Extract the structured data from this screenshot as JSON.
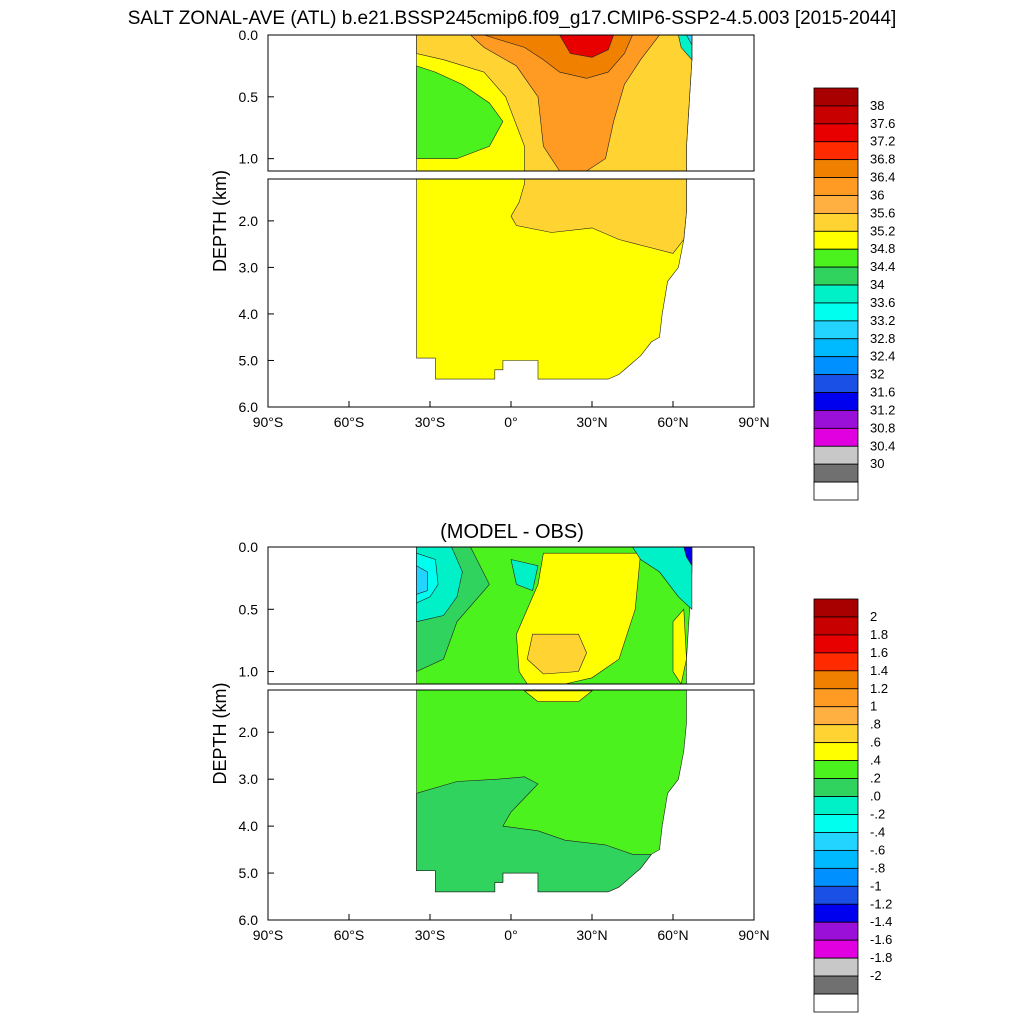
{
  "chart_data": [
    {
      "type": "heatmap",
      "title": "SALT ZONAL-AVE (ATL) b.e21.BSSP245cmip6.f09_g17.CMIP6-SSP2-4.5.003 [2015-2044]",
      "subtitle": "",
      "ylabel": "DEPTH (km)",
      "xlabel": "",
      "x_ticks": [
        "90°S",
        "60°S",
        "30°S",
        "0°",
        "30°N",
        "60°N",
        "90°N"
      ],
      "y_ticks_upper": [
        "0.0",
        "0.5",
        "1.0"
      ],
      "y_ticks_lower": [
        "2.0",
        "3.0",
        "4.0",
        "5.0",
        "6.0"
      ],
      "xlim": [
        -90,
        90
      ],
      "ylim": [
        6.0,
        0.0
      ],
      "y_break_km": 1.1,
      "legend_position": "right",
      "colorbar_labels": [
        "38",
        "37.6",
        "37.2",
        "36.8",
        "36.4",
        "36",
        "35.6",
        "35.2",
        "34.8",
        "34.4",
        "34",
        "33.6",
        "33.2",
        "32.8",
        "32.4",
        "32",
        "31.6",
        "31.2",
        "30.8",
        "30.4",
        "30"
      ],
      "colorbar_colors": [
        "#a80000",
        "#c80000",
        "#e80000",
        "#ff2a00",
        "#f08000",
        "#ff9a22",
        "#ffb040",
        "#ffd332",
        "#ffff00",
        "#4cf21e",
        "#2fd35d",
        "#00f0c8",
        "#00ffee",
        "#22d4ff",
        "#00baff",
        "#0090ff",
        "#1a50e6",
        "#0000ee",
        "#9b10d8",
        "#e000e0",
        "#c8c8c8",
        "#707070",
        "#ffffff"
      ],
      "field_colors": {
        "green": "#4cf21e",
        "yellow": "#ffff00",
        "yellow_orange": "#ffd332",
        "orange": "#ff9a22",
        "dark_orange": "#f08000",
        "red": "#e80000",
        "teal": "#00f0c8",
        "cyan": "#00ffee",
        "light_blue": "#22d4ff"
      }
    },
    {
      "type": "heatmap",
      "title": "",
      "subtitle": "(MODEL - OBS)",
      "ylabel": "DEPTH (km)",
      "xlabel": "",
      "x_ticks": [
        "90°S",
        "60°S",
        "30°S",
        "0°",
        "30°N",
        "60°N",
        "90°N"
      ],
      "y_ticks_upper": [
        "0.0",
        "0.5",
        "1.0"
      ],
      "y_ticks_lower": [
        "2.0",
        "3.0",
        "4.0",
        "5.0",
        "6.0"
      ],
      "xlim": [
        -90,
        90
      ],
      "ylim": [
        6.0,
        0.0
      ],
      "y_break_km": 1.1,
      "legend_position": "right",
      "colorbar_labels": [
        "2",
        "1.8",
        "1.6",
        "1.4",
        "1.2",
        "1",
        ".8",
        ".6",
        ".4",
        ".2",
        ".0",
        "-.2",
        "-.4",
        "-.6",
        "-.8",
        "-1",
        "-1.2",
        "-1.4",
        "-1.6",
        "-1.8",
        "-2"
      ],
      "colorbar_colors": [
        "#a80000",
        "#c80000",
        "#e80000",
        "#ff2a00",
        "#f08000",
        "#ff9a22",
        "#ffb040",
        "#ffd332",
        "#ffff00",
        "#4cf21e",
        "#2fd35d",
        "#00f0c8",
        "#00ffee",
        "#22d4ff",
        "#00baff",
        "#0090ff",
        "#1a50e6",
        "#0000ee",
        "#9b10d8",
        "#e000e0",
        "#c8c8c8",
        "#707070",
        "#ffffff"
      ],
      "field_colors": {
        "green": "#4cf21e",
        "mid_green": "#2fd35d",
        "yellow": "#ffff00",
        "yellow_orange": "#ffd332",
        "teal": "#00f0c8",
        "cyan": "#00ffee",
        "light_blue": "#22d4ff",
        "blue": "#0000ee"
      }
    }
  ]
}
